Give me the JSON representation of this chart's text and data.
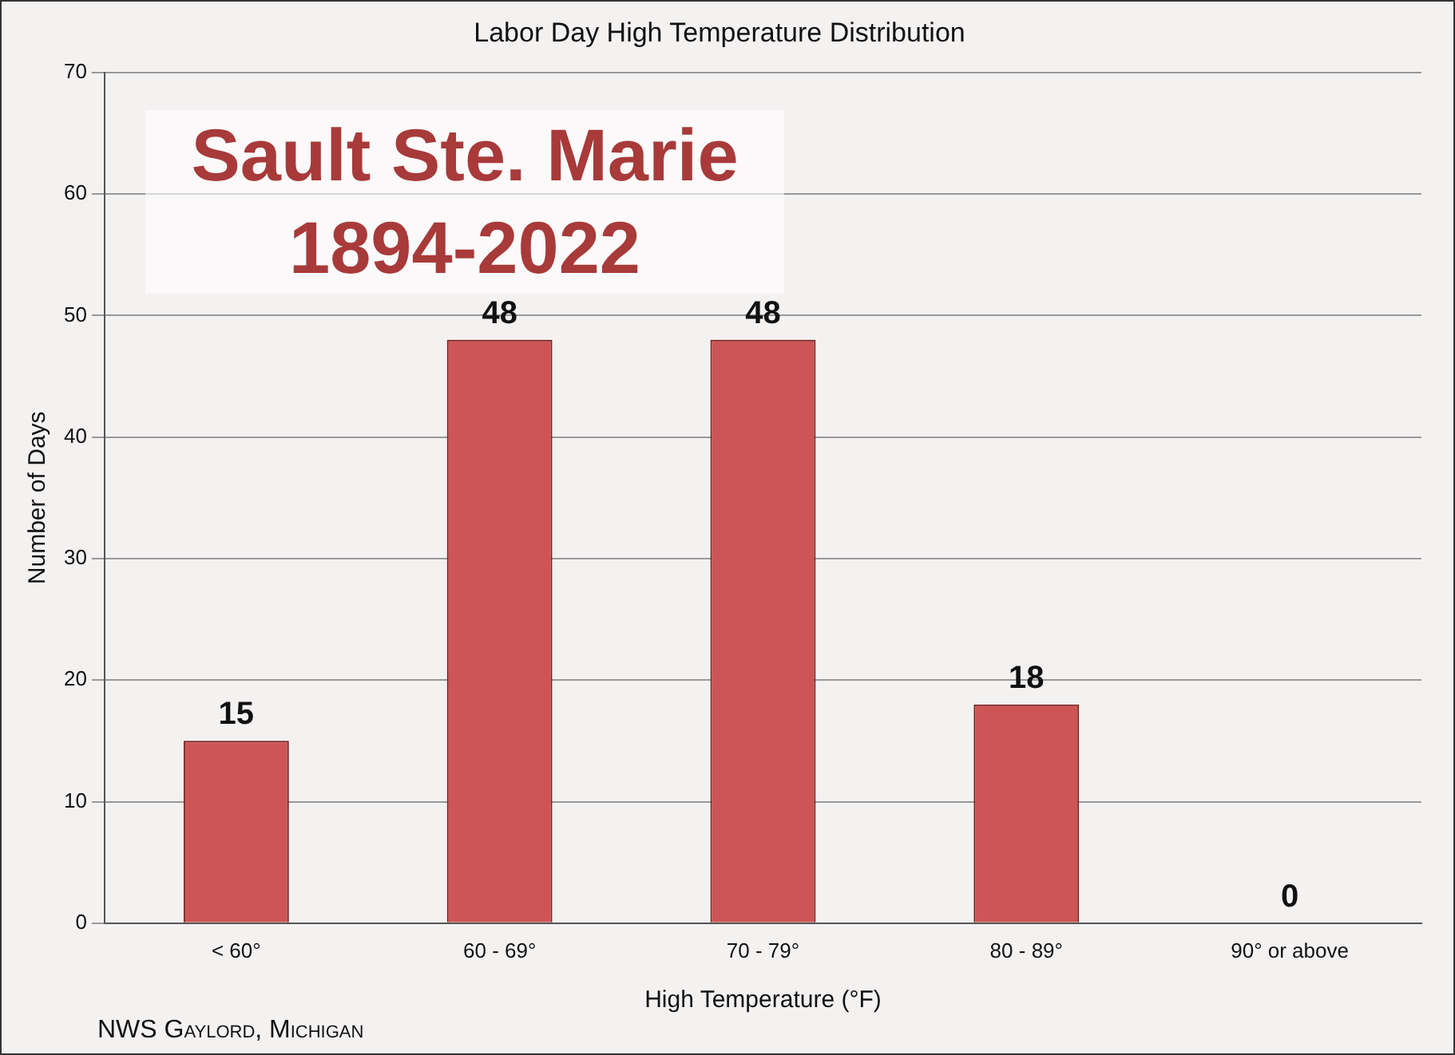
{
  "chart_data": {
    "type": "bar",
    "title": "Labor Day High Temperature Distribution",
    "subtitle": "Sault Ste. Marie 1894-2022",
    "xlabel": "High Temperature (°F)",
    "ylabel": "Number of Days",
    "categories": [
      "< 60°",
      "60 - 69°",
      "70 - 79°",
      "80 - 89°",
      "90° or above"
    ],
    "values": [
      15,
      48,
      48,
      18,
      0
    ],
    "color": "#cd5555",
    "ylim": [
      0,
      70
    ],
    "yticks": [
      0,
      10,
      20,
      30,
      40,
      50,
      60,
      70
    ],
    "grid": "y",
    "data_labels": true,
    "annotations": [
      "NWS Gaylord, Michigan"
    ]
  }
}
